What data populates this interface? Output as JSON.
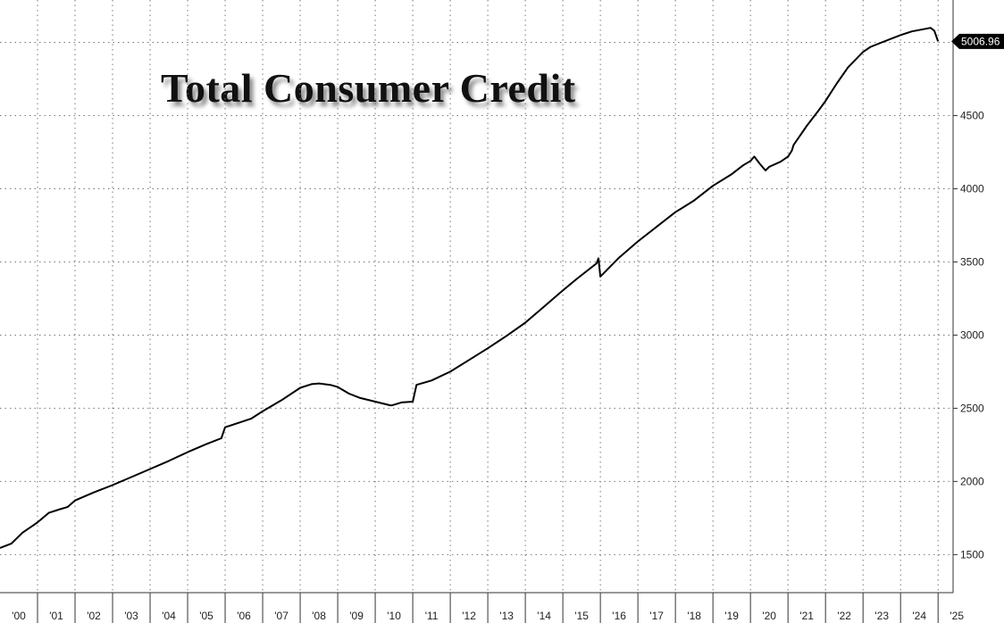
{
  "chart_data": {
    "type": "line",
    "title": "Total Consumer Credit",
    "xlabel": "",
    "ylabel": "",
    "x_range": [
      2000.0,
      2025.4
    ],
    "ylim": [
      1240,
      5290
    ],
    "grid": true,
    "y_axis_side": "right",
    "y_ticks": [
      1500,
      2000,
      2500,
      3000,
      3500,
      4000,
      4500,
      5000
    ],
    "y_tick_labels": [
      "1500",
      "2000",
      "2500",
      "3000",
      "3500",
      "4000",
      "4500",
      ""
    ],
    "x_ticks": [
      {
        "label": "'00",
        "x": 2000.5
      },
      {
        "label": "'01",
        "x": 2001.5
      },
      {
        "label": "'02",
        "x": 2002.5
      },
      {
        "label": "'03",
        "x": 2003.5
      },
      {
        "label": "'04",
        "x": 2004.5
      },
      {
        "label": "'05",
        "x": 2005.5
      },
      {
        "label": "'06",
        "x": 2006.5
      },
      {
        "label": "'07",
        "x": 2007.5
      },
      {
        "label": "'08",
        "x": 2008.5
      },
      {
        "label": "'09",
        "x": 2009.5
      },
      {
        "label": "'10",
        "x": 2010.5
      },
      {
        "label": "'11",
        "x": 2011.5
      },
      {
        "label": "'12",
        "x": 2012.5
      },
      {
        "label": "'13",
        "x": 2013.5
      },
      {
        "label": "'14",
        "x": 2014.5
      },
      {
        "label": "'15",
        "x": 2015.5
      },
      {
        "label": "'16",
        "x": 2016.5
      },
      {
        "label": "'17",
        "x": 2017.5
      },
      {
        "label": "'18",
        "x": 2018.5
      },
      {
        "label": "'19",
        "x": 2019.5
      },
      {
        "label": "'20",
        "x": 2020.5
      },
      {
        "label": "'21",
        "x": 2021.5
      },
      {
        "label": "'22",
        "x": 2022.5
      },
      {
        "label": "'23",
        "x": 2023.5
      },
      {
        "label": "'24",
        "x": 2024.5
      },
      {
        "label": "'25",
        "x": 2025.5
      }
    ],
    "x_gridlines": [
      2001,
      2002,
      2003,
      2004,
      2005,
      2006,
      2007,
      2008,
      2009,
      2010,
      2011,
      2012,
      2013,
      2014,
      2015,
      2016,
      2017,
      2018,
      2019,
      2020,
      2021,
      2022,
      2023,
      2024,
      2025
    ],
    "last_value_label": "5006.96",
    "line_color": "#000000",
    "series": [
      {
        "x": [
          2000.0,
          2000.3,
          2000.6,
          2001.0,
          2001.3,
          2001.6,
          2001.8,
          2002.0,
          2002.5,
          2003.0,
          2003.5,
          2004.0,
          2004.5,
          2005.0,
          2005.5,
          2005.9,
          2006.0,
          2006.3,
          2006.7,
          2007.0,
          2007.5,
          2008.0,
          2008.3,
          2008.5,
          2008.8,
          2009.0,
          2009.3,
          2009.6,
          2010.0,
          2010.4,
          2010.45,
          2010.7,
          2011.0,
          2011.1,
          2011.5,
          2012.0,
          2012.5,
          2013.0,
          2013.5,
          2014.0,
          2014.5,
          2015.0,
          2015.4,
          2015.9,
          2015.95,
          2016.0,
          2016.5,
          2017.0,
          2017.5,
          2018.0,
          2018.5,
          2019.0,
          2019.5,
          2019.8,
          2020.0,
          2020.1,
          2020.25,
          2020.4,
          2020.5,
          2020.8,
          2021.0,
          2021.1,
          2021.15,
          2021.5,
          2021.8,
          2022.0,
          2022.3,
          2022.6,
          2023.0,
          2023.2,
          2023.5,
          2023.8,
          2024.0,
          2024.3,
          2024.6,
          2024.8,
          2024.9,
          2025.0
        ],
        "y": [
          1545,
          1575,
          1650,
          1720,
          1785,
          1810,
          1825,
          1870,
          1925,
          1975,
          2030,
          2085,
          2140,
          2200,
          2255,
          2295,
          2370,
          2395,
          2430,
          2480,
          2555,
          2640,
          2665,
          2670,
          2660,
          2645,
          2600,
          2570,
          2545,
          2520,
          2520,
          2540,
          2545,
          2660,
          2690,
          2750,
          2830,
          2910,
          2995,
          3085,
          3195,
          3305,
          3390,
          3490,
          3525,
          3400,
          3530,
          3640,
          3740,
          3840,
          3920,
          4020,
          4100,
          4160,
          4190,
          4220,
          4170,
          4125,
          4150,
          4185,
          4220,
          4260,
          4300,
          4430,
          4530,
          4600,
          4720,
          4830,
          4935,
          4970,
          5000,
          5030,
          5050,
          5075,
          5090,
          5100,
          5080,
          5007
        ]
      }
    ]
  }
}
